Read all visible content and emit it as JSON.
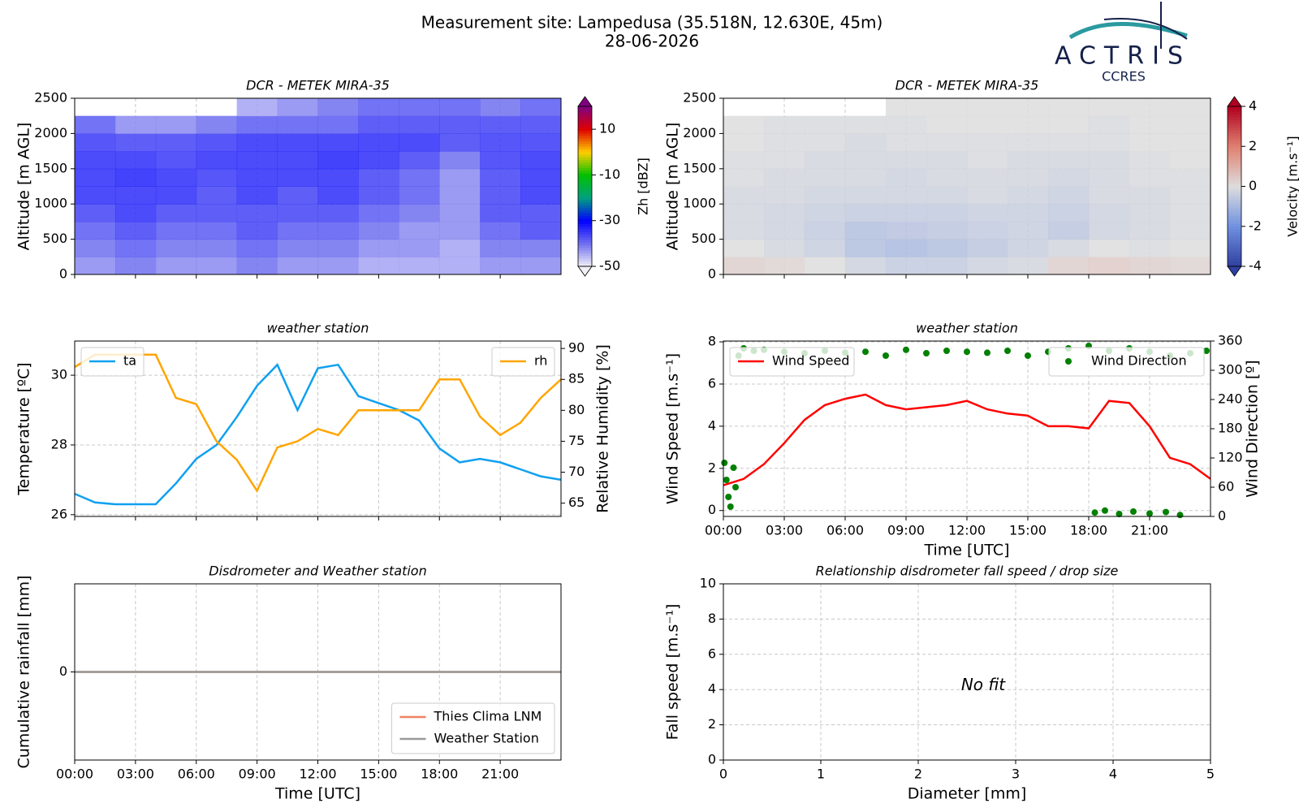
{
  "title": "Measurement site: Lampedusa (35.518N, 12.630E, 45m)",
  "subtitle": "28-06-2026",
  "logo": {
    "name": "ACTRIS",
    "subtitle": "CCRES"
  },
  "chart_data": [
    {
      "type": "heatmap",
      "title": "DCR - METEK MIRA-35",
      "ylabel": "Altitude [m AGL]",
      "colorbar_label": "Zh [dBZ]",
      "xlim": [
        0,
        24
      ],
      "xticks": [
        0,
        3,
        6,
        9,
        12,
        15,
        18,
        21
      ],
      "xtick_labels": false,
      "ylim": [
        0,
        2500
      ],
      "yticks": [
        0,
        500,
        1000,
        1500,
        2000,
        2500
      ],
      "grid": true,
      "clim": [
        -50,
        20
      ],
      "cticks": [
        -50,
        -30,
        -10,
        10
      ],
      "colormap": [
        "#f2f0f7",
        "#7070f0",
        "#0000ff",
        "#00a080",
        "#00c000",
        "#ffd000",
        "#e00000",
        "#800080"
      ],
      "x_edges": [
        0,
        2,
        4,
        6,
        8,
        10,
        12,
        14,
        16,
        18,
        20,
        22,
        24
      ],
      "y_edges": [
        0,
        250,
        500,
        750,
        1000,
        1250,
        1500,
        1750,
        2000,
        2250,
        2500
      ],
      "values": [
        [
          -42,
          -40,
          -42,
          -42,
          -40,
          -42,
          -42,
          -44,
          -44,
          -44,
          -42,
          -42
        ],
        [
          -40,
          -38,
          -40,
          -40,
          -38,
          -40,
          -40,
          -42,
          -42,
          -44,
          -40,
          -40
        ],
        [
          -38,
          -36,
          -38,
          -38,
          -36,
          -38,
          -38,
          -40,
          -42,
          -42,
          -38,
          -36
        ],
        [
          -36,
          -34,
          -36,
          -36,
          -36,
          -36,
          -36,
          -38,
          -40,
          -42,
          -36,
          -36
        ],
        [
          -34,
          -34,
          -34,
          -36,
          -34,
          -36,
          -34,
          -36,
          -38,
          -42,
          -36,
          -34
        ],
        [
          -34,
          -33,
          -34,
          -35,
          -34,
          -34,
          -34,
          -36,
          -38,
          -42,
          -36,
          -34
        ],
        [
          -34,
          -34,
          -35,
          -34,
          -34,
          -34,
          -33,
          -34,
          -36,
          -40,
          -35,
          -34
        ],
        [
          -35,
          -36,
          -36,
          -35,
          -34,
          -34,
          -34,
          -34,
          -34,
          -36,
          -35,
          -35
        ],
        [
          -38,
          -42,
          -42,
          -40,
          -38,
          -38,
          -38,
          -36,
          -36,
          -36,
          -36,
          -36
        ],
        [
          null,
          null,
          null,
          null,
          -44,
          -42,
          -40,
          -38,
          -38,
          -38,
          -40,
          -38
        ]
      ]
    },
    {
      "type": "heatmap",
      "title": "DCR - METEK MIRA-35",
      "ylabel": "Altitude [m AGL]",
      "colorbar_label": "Velocity [m.s⁻¹]",
      "xlim": [
        0,
        24
      ],
      "xticks": [
        0,
        3,
        6,
        9,
        12,
        15,
        18,
        21
      ],
      "xtick_labels": false,
      "ylim": [
        0,
        2500
      ],
      "yticks": [
        0,
        500,
        1000,
        1500,
        2000,
        2500
      ],
      "grid": true,
      "clim": [
        -4,
        4
      ],
      "cticks": [
        -4,
        -2,
        0,
        2,
        4
      ],
      "colormap": [
        "#3040a0",
        "#7090e0",
        "#dddddd",
        "#e08070",
        "#b00020"
      ],
      "x_edges": [
        0,
        2,
        4,
        6,
        8,
        10,
        12,
        14,
        16,
        18,
        20,
        22,
        24
      ],
      "y_edges": [
        0,
        250,
        500,
        750,
        1000,
        1250,
        1500,
        1750,
        2000,
        2250,
        2500
      ],
      "values": [
        [
          0.3,
          0.2,
          0,
          -0.3,
          -0.5,
          -0.5,
          -0.3,
          -0.2,
          0.3,
          0.4,
          0.3,
          0.2
        ],
        [
          0,
          -0.2,
          -0.4,
          -0.8,
          -0.9,
          -0.8,
          -0.6,
          -0.4,
          -0.2,
          0,
          -0.1,
          0
        ],
        [
          -0.2,
          -0.3,
          -0.5,
          -0.8,
          -0.7,
          -0.6,
          -0.5,
          -0.4,
          -0.6,
          -0.3,
          -0.2,
          -0.1
        ],
        [
          -0.2,
          -0.3,
          -0.4,
          -0.5,
          -0.5,
          -0.5,
          -0.4,
          -0.4,
          -0.5,
          -0.3,
          -0.2,
          -0.1
        ],
        [
          -0.2,
          -0.2,
          -0.3,
          -0.3,
          -0.3,
          -0.3,
          -0.2,
          -0.3,
          -0.4,
          -0.2,
          -0.2,
          -0.1
        ],
        [
          -0.1,
          -0.2,
          -0.2,
          -0.2,
          -0.3,
          -0.2,
          -0.2,
          -0.2,
          -0.3,
          -0.2,
          -0.1,
          -0.1
        ],
        [
          -0.1,
          -0.1,
          -0.2,
          -0.2,
          -0.2,
          -0.2,
          -0.1,
          -0.2,
          -0.2,
          -0.2,
          -0.1,
          0
        ],
        [
          0,
          -0.1,
          -0.1,
          -0.2,
          -0.1,
          -0.1,
          -0.1,
          -0.1,
          -0.1,
          -0.1,
          0,
          0
        ],
        [
          0,
          -0.1,
          -0.1,
          -0.1,
          -0.1,
          0,
          0,
          0,
          0,
          -0.1,
          0,
          0
        ],
        [
          null,
          null,
          null,
          null,
          0,
          0,
          0,
          0,
          0,
          0,
          0,
          0
        ]
      ]
    },
    {
      "type": "line",
      "title": "weather station",
      "ylabel": "Temperature [ºC]",
      "y2label": "Relative Humidity [%]",
      "xlim": [
        0,
        24
      ],
      "xticks": [
        0,
        3,
        6,
        9,
        12,
        15,
        18,
        21
      ],
      "xtick_labels": false,
      "ylim": [
        25.95,
        30.98
      ],
      "yticks": [
        26,
        28,
        30
      ],
      "y2lim": [
        62.85,
        91.2
      ],
      "y2ticks": [
        65,
        70,
        75,
        80,
        85,
        90
      ],
      "grid": true,
      "series": [
        {
          "name": "ta",
          "color": "#10a0f0",
          "legend": "upper left",
          "x": [
            0,
            1,
            2,
            3,
            4,
            5,
            6,
            7,
            8,
            9,
            10,
            11,
            12,
            13,
            14,
            15,
            16,
            17,
            18,
            19,
            20,
            21,
            22,
            23,
            24
          ],
          "values": [
            26.6,
            26.35,
            26.3,
            26.3,
            26.3,
            26.9,
            27.6,
            28.0,
            28.8,
            29.7,
            30.3,
            29.0,
            30.2,
            30.3,
            29.4,
            29.2,
            29.0,
            28.7,
            27.9,
            27.5,
            27.6,
            27.5,
            27.3,
            27.1,
            27.0
          ]
        },
        {
          "name": "rh",
          "color": "#ffa500",
          "axis": "y2",
          "legend": "upper right",
          "x": [
            0,
            1,
            2,
            3,
            4,
            5,
            6,
            7,
            8,
            9,
            10,
            11,
            12,
            13,
            14,
            15,
            16,
            17,
            18,
            19,
            20,
            21,
            22,
            23,
            24
          ],
          "values": [
            87,
            89,
            89,
            89,
            89,
            82,
            81,
            75,
            72,
            67,
            74,
            75,
            77,
            76,
            80,
            80,
            80,
            80,
            85,
            85,
            79,
            76,
            78,
            82,
            85
          ]
        }
      ]
    },
    {
      "type": "line",
      "title": "weather station",
      "ylabel": "Wind Speed [m.s⁻¹]",
      "y2label": "Wind Direction [º]",
      "xlabel": "Time [UTC]",
      "xlim": [
        0,
        24
      ],
      "xticks": [
        {
          "value": 0,
          "label": "00:00"
        },
        {
          "value": 3,
          "label": "03:00"
        },
        {
          "value": 6,
          "label": "06:00"
        },
        {
          "value": 9,
          "label": "09:00"
        },
        {
          "value": 12,
          "label": "12:00"
        },
        {
          "value": 15,
          "label": "15:00"
        },
        {
          "value": 18,
          "label": "18:00"
        },
        {
          "value": 21,
          "label": "21:00"
        }
      ],
      "xtick_labels": true,
      "ylim": [
        -0.28,
        8.04
      ],
      "yticks": [
        0,
        2,
        4,
        6,
        8
      ],
      "y2lim": [
        0,
        360
      ],
      "y2ticks": [
        0,
        60,
        120,
        180,
        240,
        300,
        360
      ],
      "grid": true,
      "series": [
        {
          "name": "Wind Speed",
          "color": "#ff0000",
          "legend": "upper left",
          "x": [
            0,
            1,
            2,
            3,
            4,
            5,
            6,
            7,
            8,
            9,
            10,
            11,
            12,
            13,
            14,
            15,
            16,
            17,
            18,
            19,
            20,
            21,
            22,
            23,
            24
          ],
          "values": [
            1.2,
            1.5,
            2.2,
            3.2,
            4.3,
            5.0,
            5.3,
            5.5,
            5.0,
            4.8,
            4.9,
            5.0,
            5.2,
            4.8,
            4.6,
            4.5,
            4.0,
            4.0,
            3.9,
            5.2,
            5.1,
            4.0,
            2.5,
            2.2,
            1.5
          ]
        },
        {
          "name": "Wind Direction",
          "color": "#008000",
          "axis": "y2",
          "style": "scatter",
          "legend": "upper right",
          "x": [
            0.05,
            0.15,
            0.25,
            0.35,
            0.5,
            0.6,
            0.75,
            1,
            1.5,
            2,
            3,
            4,
            5,
            6,
            7,
            8,
            9,
            10,
            11,
            12,
            13,
            14,
            15,
            16,
            17,
            18,
            19,
            20,
            21,
            22,
            23,
            23.8,
            18.3,
            18.8,
            19.5,
            20.2,
            21,
            21.8,
            22.5
          ],
          "values": [
            110,
            75,
            40,
            20,
            100,
            60,
            330,
            345,
            340,
            342,
            338,
            335,
            340,
            336,
            338,
            330,
            342,
            335,
            340,
            338,
            336,
            340,
            330,
            338,
            345,
            350,
            340,
            345,
            338,
            330,
            335,
            340,
            8,
            12,
            5,
            10,
            6,
            9,
            3
          ]
        }
      ]
    },
    {
      "type": "line",
      "title": "Disdrometer and Weather station",
      "ylabel": "Cumulative rainfall [mm]",
      "xlabel": "Time [UTC]",
      "xlim": [
        0,
        24
      ],
      "xticks": [
        {
          "value": 0,
          "label": "00:00"
        },
        {
          "value": 3,
          "label": "03:00"
        },
        {
          "value": 6,
          "label": "06:00"
        },
        {
          "value": 9,
          "label": "09:00"
        },
        {
          "value": 12,
          "label": "12:00"
        },
        {
          "value": 15,
          "label": "15:00"
        },
        {
          "value": 18,
          "label": "18:00"
        },
        {
          "value": 21,
          "label": "21:00"
        }
      ],
      "xtick_labels": true,
      "ylim": [
        -1,
        1
      ],
      "yticks": [
        0
      ],
      "grid": true,
      "series": [
        {
          "name": "Thies Clima LNM",
          "color": "#f08060",
          "legend": "lower right",
          "x": [
            0,
            24
          ],
          "values": [
            0,
            0
          ]
        },
        {
          "name": "Weather Station",
          "color": "#999999",
          "legend": "lower right",
          "x": [
            0,
            24
          ],
          "values": [
            0,
            0
          ]
        }
      ]
    },
    {
      "type": "scatter",
      "title": "Relationship disdrometer fall speed / drop size",
      "ylabel": "Fall speed [m.s⁻¹]",
      "xlabel": "Diameter [mm]",
      "annotation": "No fit",
      "xlim": [
        0,
        5
      ],
      "xticks": [
        0,
        1,
        2,
        3,
        4,
        5
      ],
      "xtick_labels": true,
      "ylim": [
        0,
        10
      ],
      "yticks": [
        0,
        2,
        4,
        6,
        8,
        10
      ],
      "grid": true
    }
  ]
}
